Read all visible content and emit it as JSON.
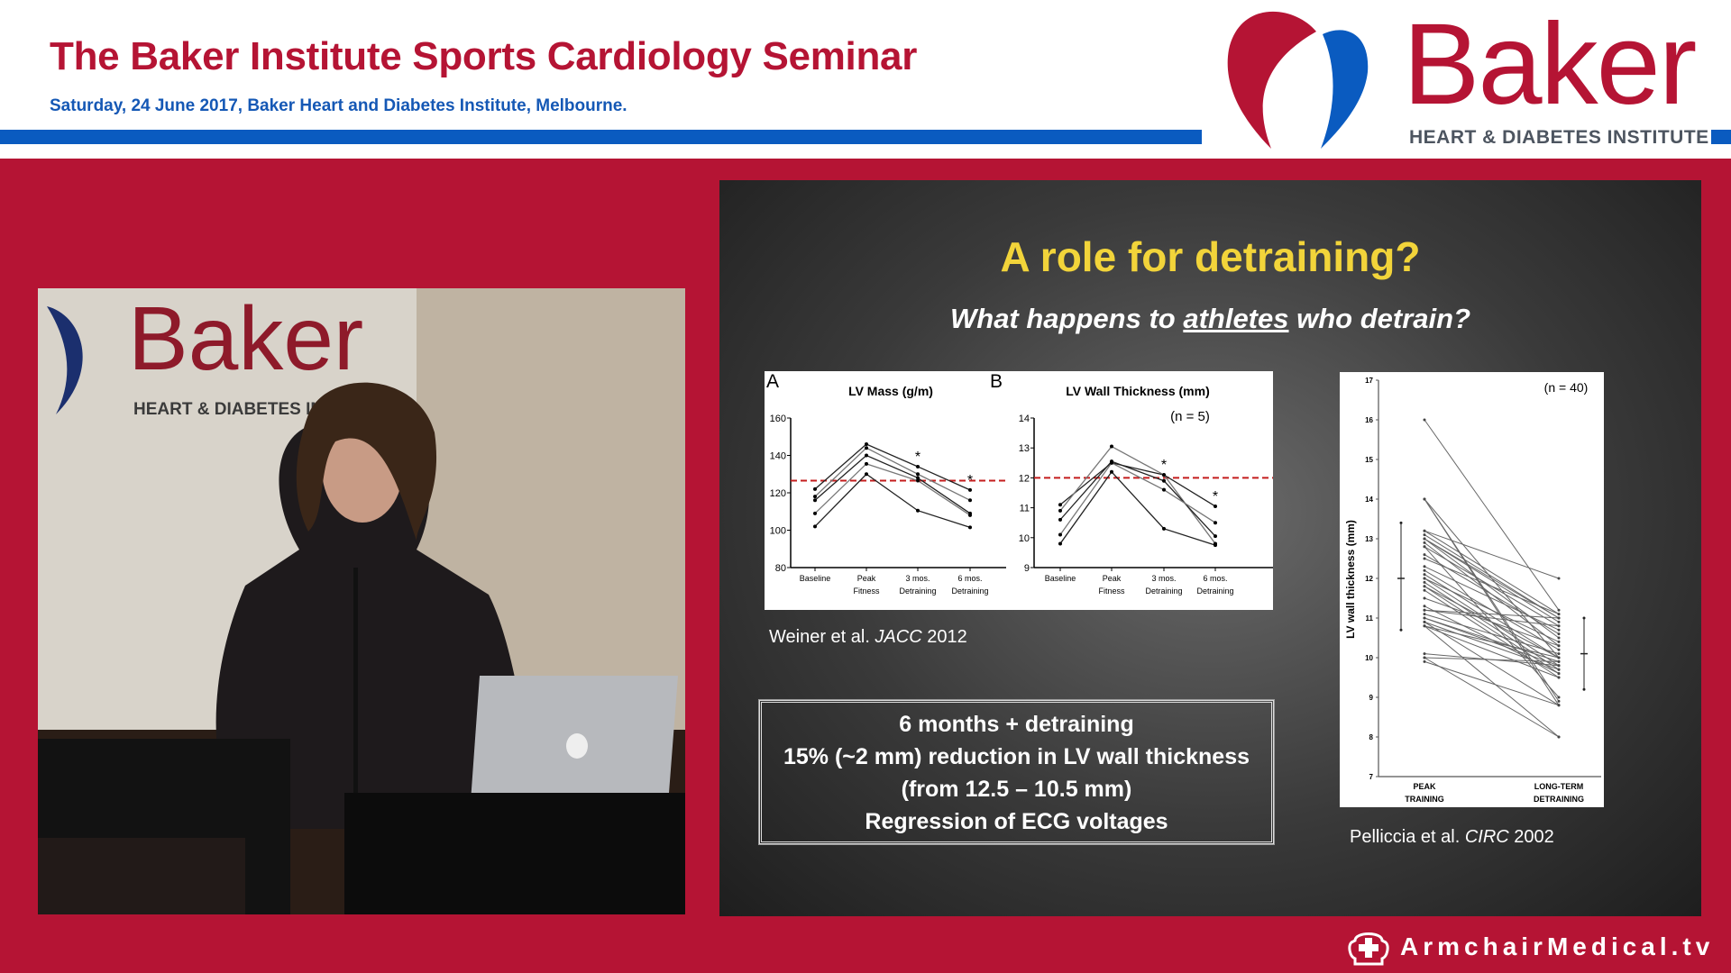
{
  "header": {
    "title": "The Baker Institute Sports Cardiology Seminar",
    "subtitle": "Saturday, 24 June 2017, Baker Heart and Diabetes Institute, Melbourne.",
    "logo_word": "Baker",
    "logo_sub": "HEART & DIABETES INSTITUTE",
    "colors": {
      "brand_red": "#b51434",
      "brand_blue": "#0a5bc0"
    }
  },
  "video": {
    "backdrop_logo_word": "Baker",
    "backdrop_logo_sub": "HEART & DIABETES INSTIT"
  },
  "slide": {
    "title": "A role for detraining?",
    "subtitle_pre": "What happens to ",
    "subtitle_em": "athletes",
    "subtitle_post": " who detrain?",
    "caption_left_pre": "Weiner et al. ",
    "caption_left_journal": "JACC",
    "caption_left_year": " 2012",
    "caption_right_pre": "Pelliccia et al. ",
    "caption_right_journal": "CIRC",
    "caption_right_year": " 2002",
    "summary": [
      "6 months + detraining",
      "15% (~2 mm) reduction in LV wall thickness",
      "(from 12.5 – 10.5 mm)",
      "Regression of ECG voltages"
    ],
    "title_color": "#f2d43a"
  },
  "footer": {
    "brand": "ArmchairMedical.tv",
    "icon": "armchair-cross-icon"
  },
  "chart_data": [
    {
      "type": "line",
      "panel": "A",
      "title": "LV  Mass (g/m)",
      "categories": [
        "Baseline|",
        "Peak|Fitness",
        "3 mos.|Detraining",
        "6 mos.|Detraining"
      ],
      "ylim": [
        80,
        160
      ],
      "yticks": [
        80,
        100,
        120,
        140,
        160
      ],
      "reference_line": 126.5,
      "significance_markers": [
        "",
        "",
        "*",
        "*"
      ],
      "series": [
        {
          "values": [
            122,
            146,
            134,
            121.5
          ]
        },
        {
          "values": [
            118,
            144,
            130,
            116
          ]
        },
        {
          "values": [
            116,
            140,
            128,
            109
          ]
        },
        {
          "values": [
            109,
            135.5,
            126.5,
            108
          ]
        },
        {
          "values": [
            102,
            130,
            110.5,
            101.5
          ]
        }
      ]
    },
    {
      "type": "line",
      "panel": "B",
      "title": "LV Wall Thickness (mm)",
      "annotation": "(n = 5)",
      "categories": [
        "Baseline|",
        "Peak|Fitness",
        "3 mos.|Detraining",
        "6 mos.|Detraining"
      ],
      "ylim": [
        9,
        14
      ],
      "yticks": [
        9,
        10,
        11,
        12,
        13,
        14
      ],
      "reference_line": 12.0,
      "significance_markers": [
        "",
        "",
        "*",
        "*"
      ],
      "series": [
        {
          "values": [
            11.1,
            12.5,
            12.1,
            11.05
          ]
        },
        {
          "values": [
            10.9,
            13.05,
            12.1,
            9.8
          ]
        },
        {
          "values": [
            10.6,
            12.55,
            11.9,
            10.05
          ]
        },
        {
          "values": [
            10.1,
            12.5,
            11.6,
            10.5
          ]
        },
        {
          "values": [
            9.8,
            12.2,
            10.3,
            9.75
          ]
        }
      ]
    },
    {
      "type": "line",
      "ylabel": "LV wall thickness (mm)",
      "annotation": "(n = 40)",
      "categories": [
        "PEAK|TRAINING",
        "LONG-TERM|DETRAINING"
      ],
      "ylim": [
        7,
        17
      ],
      "yticks": [
        7,
        8,
        9,
        10,
        11,
        12,
        13,
        14,
        15,
        16,
        17
      ],
      "summary": [
        {
          "mean": 12.0,
          "low": 10.7,
          "high": 13.4
        },
        {
          "mean": 10.1,
          "low": 9.2,
          "high": 11.0
        }
      ],
      "pairs": [
        [
          16,
          11.2
        ],
        [
          14,
          8.9
        ],
        [
          14,
          8.8
        ],
        [
          14,
          10.0
        ],
        [
          13.2,
          12.0
        ],
        [
          13.2,
          11.1
        ],
        [
          13.1,
          11.0
        ],
        [
          13.0,
          10.9
        ],
        [
          13.0,
          10.5
        ],
        [
          12.9,
          10.3
        ],
        [
          12.8,
          9.0
        ],
        [
          12.8,
          10.8
        ],
        [
          12.2,
          10.2
        ],
        [
          12.1,
          10.0
        ],
        [
          12.0,
          10.4
        ],
        [
          12.0,
          9.8
        ],
        [
          11.9,
          9.7
        ],
        [
          11.8,
          10.0
        ],
        [
          11.8,
          9.6
        ],
        [
          11.7,
          9.5
        ],
        [
          11.2,
          11.0
        ],
        [
          11.2,
          10.8
        ],
        [
          11.1,
          10.1
        ],
        [
          11.0,
          9.8
        ],
        [
          11.0,
          9.9
        ],
        [
          10.9,
          8.8
        ],
        [
          10.9,
          9.7
        ],
        [
          10.8,
          8.0
        ],
        [
          10.8,
          9.5
        ],
        [
          10.8,
          10.0
        ],
        [
          10.1,
          9.8
        ],
        [
          10.0,
          9.9
        ],
        [
          10.0,
          8.0
        ],
        [
          9.9,
          8.8
        ],
        [
          12.5,
          11.1
        ],
        [
          12.3,
          10.7
        ],
        [
          11.5,
          10.3
        ],
        [
          13.0,
          11.0
        ],
        [
          11.3,
          9.6
        ],
        [
          12.6,
          10.6
        ]
      ]
    }
  ]
}
